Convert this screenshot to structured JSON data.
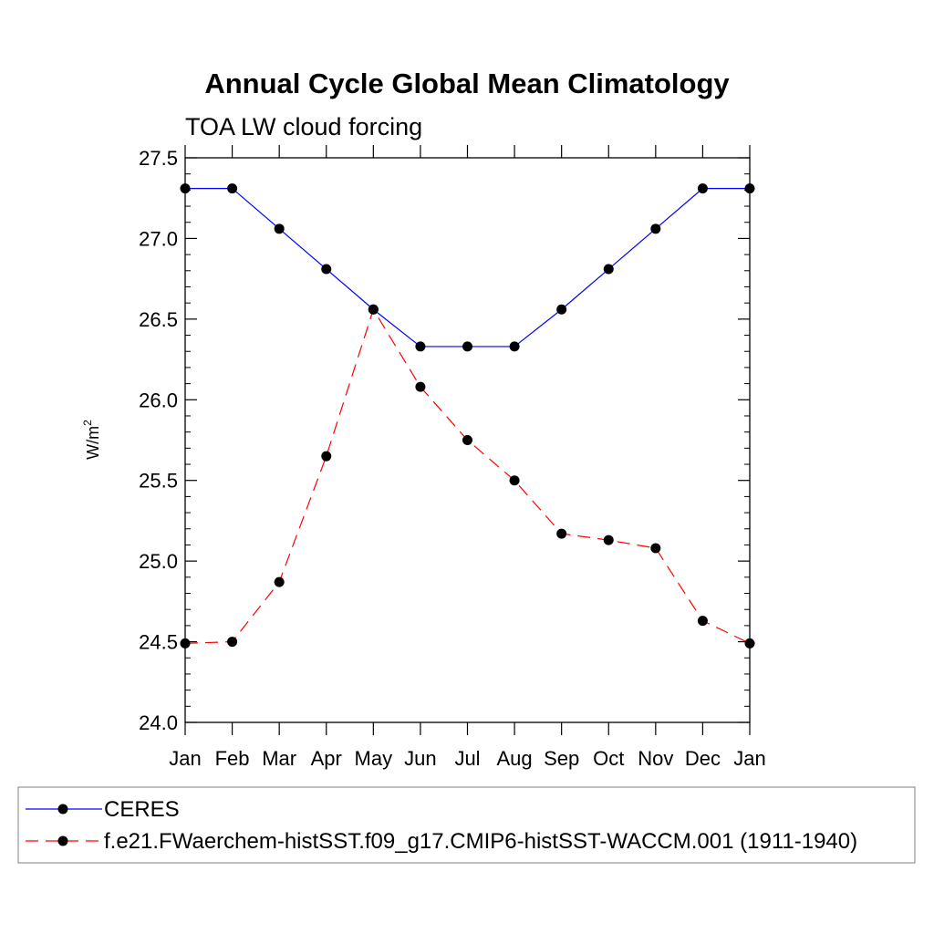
{
  "chart_data": {
    "type": "line",
    "title": "Annual Cycle Global Mean Climatology",
    "subtitle": "TOA LW cloud forcing",
    "xlabel": "",
    "ylabel": "W/m",
    "ylabel_sup": "2",
    "categories": [
      "Jan",
      "Feb",
      "Mar",
      "Apr",
      "May",
      "Jun",
      "Jul",
      "Aug",
      "Sep",
      "Oct",
      "Nov",
      "Dec",
      "Jan"
    ],
    "ylim": [
      24.0,
      27.5
    ],
    "yticks": [
      "24.0",
      "24.5",
      "25.0",
      "25.5",
      "26.0",
      "26.5",
      "27.0",
      "27.5"
    ],
    "grid": false,
    "legend_position": "bottom",
    "series": [
      {
        "name": "CERES",
        "color": "#0000ff",
        "dash": "solid",
        "marker": "circle",
        "values": [
          27.31,
          27.31,
          27.06,
          26.81,
          26.56,
          26.33,
          26.33,
          26.33,
          26.56,
          26.81,
          27.06,
          27.31,
          27.31
        ]
      },
      {
        "name": "f.e21.FWaerchem-histSST.f09_g17.CMIP6-histSST-WACCM.001 (1911-1940)",
        "color": "#ff0000",
        "dash": "dashed",
        "marker": "circle",
        "values": [
          24.49,
          24.5,
          24.87,
          25.65,
          26.56,
          26.08,
          25.75,
          25.5,
          25.17,
          25.13,
          25.08,
          24.63,
          24.49
        ]
      }
    ]
  }
}
